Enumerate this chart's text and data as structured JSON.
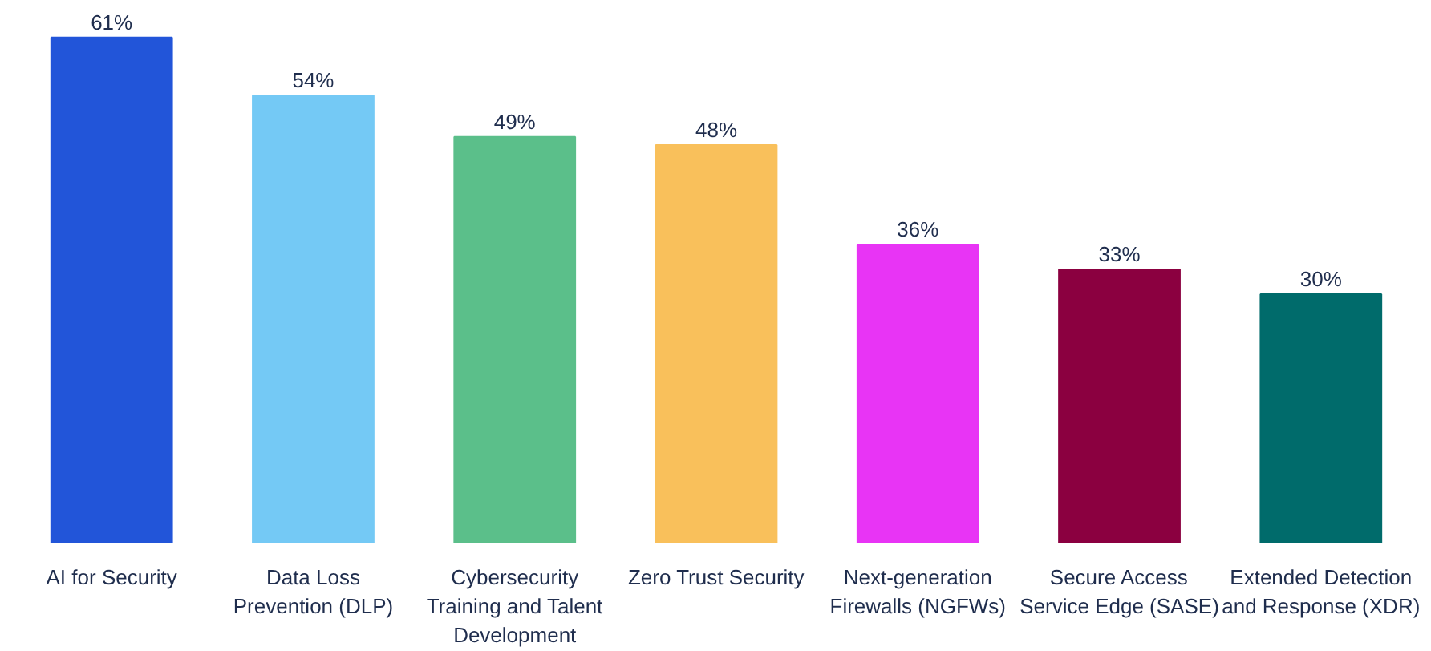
{
  "chart_data": {
    "type": "bar",
    "categories": [
      "AI for Security",
      "Data Loss Prevention (DLP)",
      "Cybersecurity Training and Talent Development",
      "Zero Trust Security",
      "Next-generation Firewalls (NGFWs)",
      "Secure Access Service Edge (SASE)",
      "Extended Detection and Response (XDR)"
    ],
    "values": [
      61,
      54,
      49,
      48,
      36,
      33,
      30
    ],
    "value_labels": [
      "61%",
      "54%",
      "49%",
      "48%",
      "36%",
      "33%",
      "30%"
    ],
    "colors": [
      "#2255d9",
      "#74c9f5",
      "#5bbf8a",
      "#f9c05b",
      "#e834f5",
      "#8b0040",
      "#006b6b"
    ]
  }
}
